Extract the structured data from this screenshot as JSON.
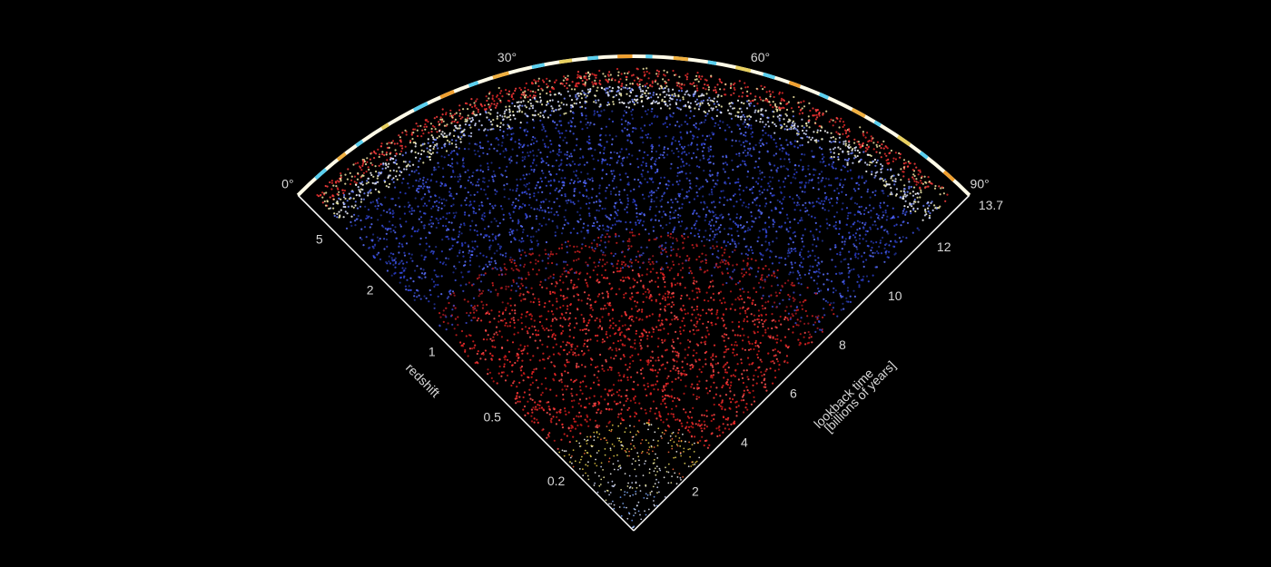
{
  "chart_data": {
    "type": "wedge",
    "angle_axis": {
      "xlim": [
        0,
        90
      ],
      "xticks": [
        {
          "value": 0,
          "label": "0°"
        },
        {
          "value": 30,
          "label": "30°"
        },
        {
          "value": 60,
          "label": "60°"
        },
        {
          "value": 90,
          "label": "90°"
        }
      ]
    },
    "lookback_axis": {
      "label": "lookback time",
      "sublabel": "[billions of years]",
      "xlim": [
        0,
        13.7
      ],
      "xticks": [
        2,
        4,
        6,
        8,
        10,
        12,
        13.7
      ]
    },
    "redshift_axis": {
      "label": "redshift",
      "xticks": [
        5,
        2,
        1,
        0.5,
        0.2
      ]
    }
  }
}
